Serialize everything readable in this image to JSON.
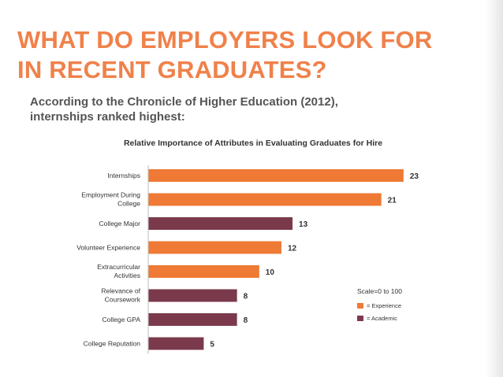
{
  "slide": {
    "title_line1": "WHAT DO EMPLOYERS LOOK FOR",
    "title_line2": "IN RECENT GRADUATES?",
    "subtitle_line1": "According to the Chronicle of Higher Education (2012),",
    "subtitle_line2": "internships ranked highest:"
  },
  "colors": {
    "title": "#f0814a",
    "experience": "#ee7a35",
    "academic": "#7b3a4c"
  },
  "chart_data": {
    "type": "bar",
    "orientation": "horizontal",
    "title": "Relative Importance of Attributes in Evaluating Graduates for Hire",
    "categories": [
      [
        "Internships"
      ],
      [
        "Employment During",
        "College"
      ],
      [
        "College Major"
      ],
      [
        "Volunteer Experience"
      ],
      [
        "Extracurricular",
        "Activities"
      ],
      [
        "Relevance of",
        "Coursework"
      ],
      [
        "College GPA"
      ],
      [
        "College Reputation"
      ]
    ],
    "values": [
      23,
      21,
      13,
      12,
      10,
      8,
      8,
      5
    ],
    "groups": [
      "experience",
      "experience",
      "academic",
      "experience",
      "experience",
      "academic",
      "academic",
      "academic"
    ],
    "xlim": [
      0,
      25
    ],
    "grid": false,
    "note": "Scale=0 to 100",
    "legend": {
      "position": "right",
      "items": [
        {
          "key": "experience",
          "label": "= Experience"
        },
        {
          "key": "academic",
          "label": "= Academic"
        }
      ]
    }
  }
}
